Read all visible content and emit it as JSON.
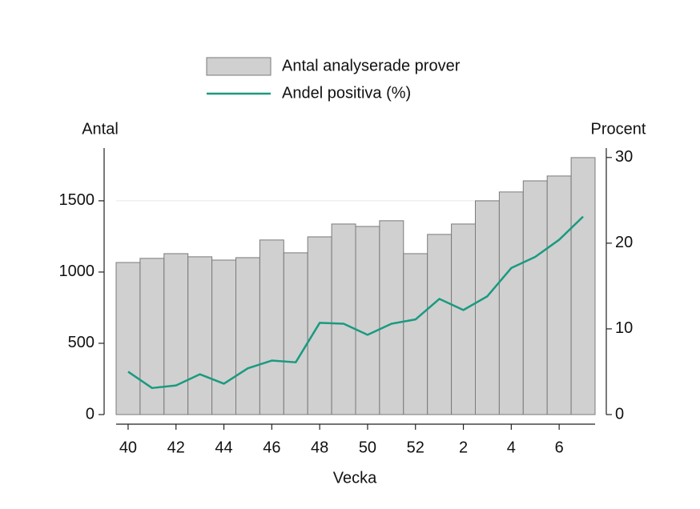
{
  "chart_data": {
    "type": "bar_line",
    "x_label": "Vecka",
    "y_label": "Antal",
    "y2_label": "Procent",
    "categories": [
      "40",
      null,
      "42",
      null,
      "44",
      null,
      "46",
      null,
      "48",
      null,
      "50",
      null,
      "52",
      null,
      "2",
      null,
      "4",
      null,
      "6",
      null
    ],
    "series": [
      {
        "name": "Antal analyserade prover",
        "type": "bar",
        "color": "#d0d0d0",
        "values": [
          1067,
          1096,
          1129,
          1107,
          1084,
          1101,
          1225,
          1135,
          1247,
          1337,
          1320,
          1360,
          1129,
          1264,
          1337,
          1500,
          1562,
          1640,
          1674,
          1803
        ]
      },
      {
        "name": "Andel positiva (%)",
        "type": "line",
        "axis": "y2",
        "color": "#1a9a80",
        "values": [
          5.0,
          3.1,
          3.4,
          4.7,
          3.6,
          5.4,
          6.3,
          6.1,
          10.7,
          10.6,
          9.3,
          10.6,
          11.1,
          13.5,
          12.2,
          13.8,
          17.1,
          18.4,
          20.4,
          23.1
        ]
      }
    ],
    "ylim": [
      0,
      1870
    ],
    "yticks": [
      0,
      500,
      1000,
      1500
    ],
    "y2lim": [
      0,
      31.1
    ],
    "y2ticks": [
      0,
      10,
      20,
      30
    ],
    "grid": true
  }
}
